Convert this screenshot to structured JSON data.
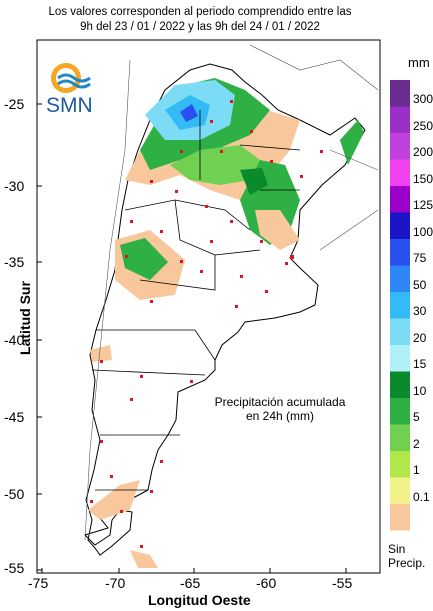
{
  "header": {
    "line1": "Los valores corresponden al periodo comprendido entre las",
    "line2": "9h del 23 / 01 / 2022  y las 9h del 24 / 01 / 2022"
  },
  "logo": {
    "text": "SMN",
    "icon": "smn-logo-icon"
  },
  "axes": {
    "xlabel": "Longitud Oeste",
    "ylabel": "Latitud Sur",
    "xticks": [
      "-75",
      "-70",
      "-65",
      "-60",
      "-55"
    ],
    "yticks": [
      "-25",
      "-30",
      "-35",
      "-40",
      "-45",
      "-50",
      "-55"
    ]
  },
  "note": {
    "line1": "Precipitación acumulada",
    "line2": "en 24h (mm)"
  },
  "legend": {
    "unit": "mm",
    "items": [
      {
        "label": "300",
        "color": "#6b2c8f"
      },
      {
        "label": "250",
        "color": "#9b30c8"
      },
      {
        "label": "200",
        "color": "#c040e0"
      },
      {
        "label": "150",
        "color": "#f040f0"
      },
      {
        "label": "125",
        "color": "#9c00c8"
      },
      {
        "label": "100",
        "color": "#1c14c8"
      },
      {
        "label": "75",
        "color": "#2a50f0"
      },
      {
        "label": "50",
        "color": "#2e86f8"
      },
      {
        "label": "30",
        "color": "#33bbf5"
      },
      {
        "label": "20",
        "color": "#7cdcf6"
      },
      {
        "label": "15",
        "color": "#b2f0f8"
      },
      {
        "label": "10",
        "color": "#0a8a2c"
      },
      {
        "label": "5",
        "color": "#2fb045"
      },
      {
        "label": "2",
        "color": "#6fd052"
      },
      {
        "label": "1",
        "color": "#b0e84a"
      },
      {
        "label": "0.1",
        "color": "#f2f28a"
      },
      {
        "label": "",
        "color": "#f8c79c"
      }
    ],
    "nodata_line1": "Sin",
    "nodata_line2": "Precip."
  }
}
